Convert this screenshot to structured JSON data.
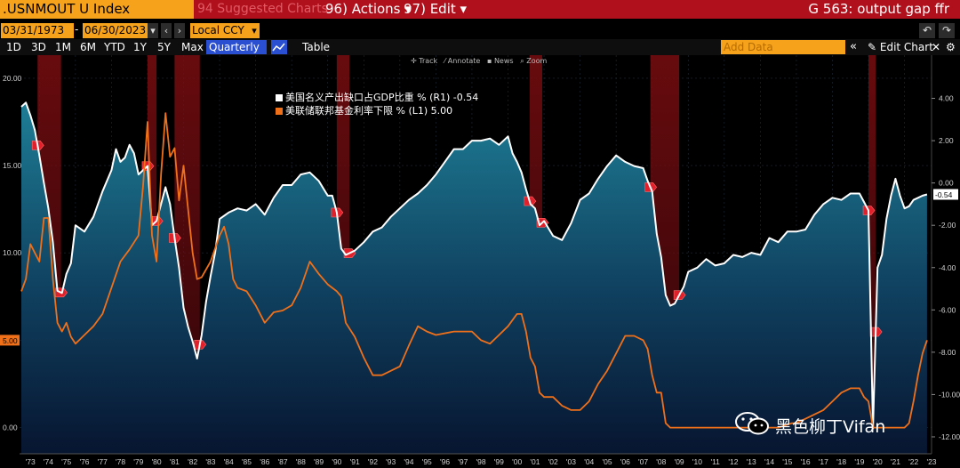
{
  "toolbar": {
    "ticker": ".USNMOUT U Index",
    "suggested": "94 Suggested Charts",
    "actions": "96) Actions ▾",
    "edit": "97) Edit ▾",
    "title": "G 563: output gap ffr"
  },
  "dates": {
    "start": "03/31/1973",
    "sep": "-",
    "end": "06/30/2023",
    "currency": "Local CCY"
  },
  "ranges": [
    "1D",
    "3D",
    "1M",
    "6M",
    "YTD",
    "1Y",
    "5Y",
    "Max"
  ],
  "frequency": "Quarterly ▼",
  "table_label": "Table",
  "add_data_placeholder": "Add Data",
  "edit_chart_label": "Edit Chart",
  "tools": [
    "Track",
    "Annotate",
    "News",
    "Zoom"
  ],
  "legend": [
    {
      "label": "美国名义产出缺口占GDP比重 % (R1) -0.54",
      "color": "#ffffff"
    },
    {
      "label": "美联储联邦基金利率下限 % (L1)     5.00",
      "color": "#f0701a"
    }
  ],
  "watermark": "黑色柳丁Vifan",
  "chart_data": {
    "type": "line",
    "x_tick_labels": [
      "'73",
      "'74",
      "'75",
      "'76",
      "'77",
      "'78",
      "'79",
      "'80",
      "'81",
      "'82",
      "'83",
      "'84",
      "'85",
      "'86",
      "'87",
      "'88",
      "'89",
      "'90",
      "'91",
      "'92",
      "'93",
      "'94",
      "'95",
      "'96",
      "'97",
      "'98",
      "'99",
      "'00",
      "'01",
      "'02",
      "'03",
      "'04",
      "'05",
      "'06",
      "'07",
      "'08",
      "'09",
      "'10",
      "'11",
      "'12",
      "'13",
      "'14",
      "'15",
      "'16",
      "'17",
      "'18",
      "'19",
      "'20",
      "'21",
      "'22",
      "'23"
    ],
    "left_axis": {
      "ticks": [
        "20.00",
        "15.00",
        "10.00",
        "5.00",
        "0.00"
      ],
      "ylim": [
        -1.5,
        20.3
      ]
    },
    "right_axis": {
      "ticks": [
        "4.00",
        "2.00",
        "0.00",
        "-2.00",
        "-4.00",
        "-6.00",
        "-8.00",
        "-10.00",
        "-12.00"
      ],
      "ylim": [
        -12.8,
        5.2
      ]
    },
    "current_labels": {
      "left": "5.00",
      "right": "-0.54"
    },
    "recessions": [
      [
        1973.9,
        1975.2
      ],
      [
        1980.0,
        1980.5
      ],
      [
        1981.5,
        1982.9
      ],
      [
        1990.5,
        1991.2
      ],
      [
        2001.2,
        2001.9
      ],
      [
        2007.9,
        2009.5
      ],
      [
        2020.0,
        2020.4
      ]
    ],
    "series": [
      {
        "name": "美国名义产出缺口占GDP比重 % (R1)",
        "axis": "right",
        "color": "#ffffff",
        "x": [
          1973.0,
          1973.25,
          1973.5,
          1973.75,
          1974.0,
          1974.25,
          1974.5,
          1974.75,
          1975.0,
          1975.25,
          1975.5,
          1975.75,
          1976.0,
          1976.5,
          1977.0,
          1977.5,
          1978.0,
          1978.25,
          1978.5,
          1978.75,
          1979.0,
          1979.25,
          1979.5,
          1979.75,
          1980.0,
          1980.25,
          1980.5,
          1980.75,
          1981.0,
          1981.25,
          1981.5,
          1981.75,
          1982.0,
          1982.25,
          1982.5,
          1982.75,
          1983.0,
          1983.25,
          1983.5,
          1983.75,
          1984.0,
          1984.5,
          1985.0,
          1985.5,
          1986.0,
          1986.5,
          1987.0,
          1987.5,
          1988.0,
          1988.5,
          1989.0,
          1989.5,
          1990.0,
          1990.25,
          1990.5,
          1990.75,
          1991.0,
          1991.5,
          1992.0,
          1992.5,
          1993.0,
          1993.5,
          1994.0,
          1994.5,
          1995.0,
          1995.5,
          1996.0,
          1996.5,
          1997.0,
          1997.5,
          1998.0,
          1998.5,
          1999.0,
          1999.5,
          2000.0,
          2000.25,
          2000.5,
          2000.75,
          2001.0,
          2001.25,
          2001.5,
          2001.75,
          2002.0,
          2002.5,
          2003.0,
          2003.5,
          2004.0,
          2004.5,
          2005.0,
          2005.5,
          2006.0,
          2006.5,
          2007.0,
          2007.5,
          2007.75,
          2008.0,
          2008.25,
          2008.5,
          2008.75,
          2009.0,
          2009.25,
          2009.5,
          2009.75,
          2010.0,
          2010.5,
          2011.0,
          2011.5,
          2012.0,
          2012.5,
          2013.0,
          2013.5,
          2014.0,
          2014.5,
          2015.0,
          2015.5,
          2016.0,
          2016.5,
          2017.0,
          2017.5,
          2018.0,
          2018.5,
          2019.0,
          2019.5,
          2019.75,
          2020.0,
          2020.25,
          2020.5,
          2020.75,
          2021.0,
          2021.25,
          2021.5,
          2021.75,
          2022.0,
          2022.25,
          2022.5,
          2022.75,
          2023.0,
          2023.25
        ],
        "y": [
          3.6,
          3.8,
          3.2,
          2.5,
          1.3,
          0.0,
          -1.2,
          -2.8,
          -5.1,
          -5.2,
          -4.3,
          -3.8,
          -2.0,
          -2.3,
          -1.6,
          -0.4,
          0.6,
          1.6,
          1.0,
          1.2,
          1.8,
          1.4,
          0.4,
          0.6,
          0.8,
          -2.0,
          -1.8,
          -1.0,
          -0.2,
          -1.0,
          -2.6,
          -4.0,
          -5.9,
          -6.8,
          -7.5,
          -8.3,
          -7.2,
          -5.6,
          -4.4,
          -3.3,
          -1.7,
          -1.4,
          -1.2,
          -1.3,
          -1.0,
          -1.5,
          -0.7,
          -0.1,
          -0.1,
          0.4,
          0.5,
          0.1,
          -0.6,
          -0.6,
          -1.4,
          -3.1,
          -3.4,
          -3.2,
          -2.8,
          -2.3,
          -2.1,
          -1.6,
          -1.2,
          -0.8,
          -0.5,
          -0.1,
          0.4,
          1.0,
          1.6,
          1.6,
          2.0,
          2.0,
          2.1,
          1.8,
          2.2,
          1.4,
          1.0,
          0.5,
          -0.3,
          -1.0,
          -1.2,
          -2.0,
          -1.8,
          -2.5,
          -2.7,
          -1.9,
          -0.8,
          -0.5,
          0.2,
          0.8,
          1.3,
          1.0,
          0.8,
          0.7,
          0.1,
          -0.4,
          -2.4,
          -3.5,
          -5.3,
          -5.8,
          -5.7,
          -5.3,
          -4.9,
          -4.2,
          -4.0,
          -3.6,
          -3.9,
          -3.8,
          -3.4,
          -3.5,
          -3.3,
          -3.4,
          -2.6,
          -2.8,
          -2.3,
          -2.3,
          -2.2,
          -1.5,
          -1.0,
          -0.7,
          -0.8,
          -0.5,
          -0.5,
          -0.9,
          -1.3,
          -11.6,
          -4.0,
          -3.4,
          -1.7,
          -0.6,
          0.2,
          -0.6,
          -1.2,
          -1.1,
          -0.8,
          -0.7,
          -0.6,
          -0.54
        ]
      },
      {
        "name": "美联储联邦基金利率下限 % (L1)",
        "axis": "left",
        "color": "#f0701a",
        "x": [
          1973.0,
          1973.25,
          1973.5,
          1973.75,
          1974.0,
          1974.25,
          1974.5,
          1974.75,
          1975.0,
          1975.25,
          1975.5,
          1975.75,
          1976.0,
          1976.5,
          1977.0,
          1977.5,
          1978.0,
          1978.5,
          1979.0,
          1979.5,
          1979.75,
          1980.0,
          1980.25,
          1980.5,
          1980.75,
          1981.0,
          1981.25,
          1981.5,
          1981.75,
          1982.0,
          1982.25,
          1982.5,
          1982.75,
          1983.0,
          1983.5,
          1984.0,
          1984.25,
          1984.5,
          1984.75,
          1985.0,
          1985.5,
          1986.0,
          1986.5,
          1987.0,
          1987.5,
          1988.0,
          1988.5,
          1989.0,
          1989.5,
          1990.0,
          1990.5,
          1990.75,
          1991.0,
          1991.5,
          1992.0,
          1992.5,
          1993.0,
          1994.0,
          1994.5,
          1995.0,
          1995.5,
          1996.0,
          1997.0,
          1998.0,
          1998.5,
          1999.0,
          1999.5,
          2000.0,
          2000.5,
          2000.75,
          2001.0,
          2001.25,
          2001.5,
          2001.75,
          2002.0,
          2002.5,
          2003.0,
          2003.5,
          2004.0,
          2004.5,
          2005.0,
          2005.5,
          2006.0,
          2006.5,
          2007.0,
          2007.5,
          2007.75,
          2008.0,
          2008.25,
          2008.5,
          2008.75,
          2009.0,
          2010.0,
          2015.0,
          2015.75,
          2016.0,
          2016.5,
          2017.0,
          2017.5,
          2018.0,
          2018.5,
          2019.0,
          2019.5,
          2019.75,
          2020.0,
          2020.25,
          2021.0,
          2022.0,
          2022.25,
          2022.5,
          2022.75,
          2023.0,
          2023.25
        ],
        "y": [
          7.8,
          8.5,
          10.5,
          10.0,
          9.5,
          12.0,
          12.0,
          8.5,
          6.0,
          5.5,
          6.0,
          5.2,
          4.8,
          5.3,
          5.8,
          6.5,
          8.0,
          9.5,
          10.2,
          11.0,
          13.8,
          17.5,
          11.0,
          9.5,
          14.5,
          18.0,
          15.5,
          16.0,
          13.0,
          15.0,
          12.5,
          10.0,
          8.5,
          8.6,
          9.5,
          11.0,
          11.5,
          10.5,
          8.5,
          8.0,
          7.8,
          7.0,
          6.0,
          6.6,
          6.7,
          7.0,
          8.0,
          9.5,
          8.8,
          8.2,
          7.8,
          7.5,
          6.0,
          5.2,
          4.0,
          3.0,
          3.0,
          3.5,
          4.7,
          5.8,
          5.5,
          5.3,
          5.5,
          5.5,
          5.0,
          4.8,
          5.3,
          5.8,
          6.5,
          6.5,
          5.5,
          4.0,
          3.5,
          2.0,
          1.75,
          1.75,
          1.25,
          1.0,
          1.0,
          1.5,
          2.5,
          3.25,
          4.25,
          5.25,
          5.25,
          5.0,
          4.5,
          3.0,
          2.0,
          2.0,
          0.25,
          0.0,
          0.0,
          0.0,
          0.25,
          0.25,
          0.5,
          0.75,
          1.0,
          1.5,
          2.0,
          2.25,
          2.25,
          1.75,
          1.5,
          0.0,
          0.0,
          0.0,
          0.25,
          1.5,
          3.0,
          4.25,
          5.0
        ]
      }
    ]
  }
}
